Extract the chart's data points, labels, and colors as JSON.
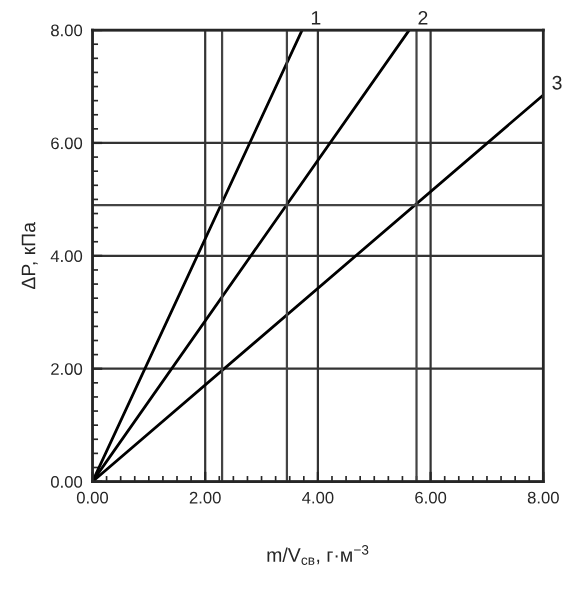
{
  "chart_data": {
    "type": "line",
    "xlabel": "m/V$_{св}$, г·м$^{−3}$",
    "ylabel": "ΔP, кПа",
    "xlim": [
      0,
      8
    ],
    "ylim": [
      0,
      8
    ],
    "xticks": [
      {
        "value": 0,
        "label": "0.00"
      },
      {
        "value": 2,
        "label": "2.00"
      },
      {
        "value": 4,
        "label": "4.00"
      },
      {
        "value": 6,
        "label": "6.00"
      },
      {
        "value": 8,
        "label": "8.00"
      }
    ],
    "yticks": [
      {
        "value": 0,
        "label": "0.00"
      },
      {
        "value": 2,
        "label": "2.00"
      },
      {
        "value": 4,
        "label": "4.00"
      },
      {
        "value": 6,
        "label": "6.00"
      },
      {
        "value": 8,
        "label": "8.00"
      }
    ],
    "grid": true,
    "marker": "none",
    "line_style": "solid",
    "series": [
      {
        "color": "#000000",
        "x": [
          0,
          3.72
        ],
        "values": [
          0,
          8
        ]
      },
      {
        "color": "#000000",
        "x": [
          0,
          5.62
        ],
        "values": [
          0,
          8
        ]
      },
      {
        "color": "#000000",
        "x": [
          0,
          8
        ],
        "values": [
          0,
          6.85
        ]
      }
    ],
    "annotations": [
      {
        "text": "1",
        "x": 3.72,
        "y": 8
      },
      {
        "text": "2",
        "x": 5.62,
        "y": 8
      },
      {
        "text": "3",
        "x": 8,
        "y": 6.85
      }
    ],
    "ref_lines": [
      {
        "axis": "y",
        "value": 4.9,
        "color": "#444444"
      },
      {
        "axis": "x",
        "value": 2.3,
        "color": "#444444"
      },
      {
        "axis": "x",
        "value": 3.45,
        "color": "#444444"
      },
      {
        "axis": "x",
        "value": 5.75,
        "color": "#444444"
      }
    ]
  }
}
